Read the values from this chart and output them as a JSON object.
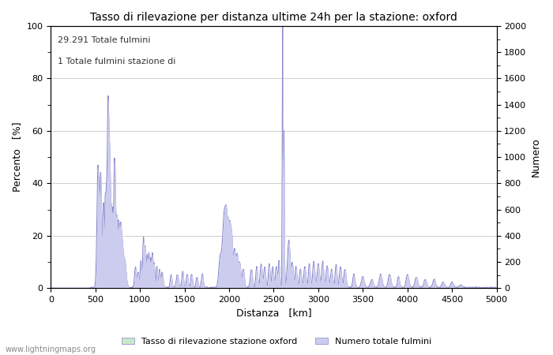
{
  "title": "Tasso di rilevazione per distanza ultime 24h per la stazione: oxford",
  "xlabel": "Distanza   [km]",
  "ylabel_left": "Percento   [%]",
  "ylabel_right": "Numero",
  "annotation_line1": "29.291 Totale fulmini",
  "annotation_line2": "1 Totale fulmini stazione di",
  "xlim": [
    0,
    5000
  ],
  "ylim_left": [
    0,
    100
  ],
  "ylim_right": [
    0,
    2000
  ],
  "xticks": [
    0,
    500,
    1000,
    1500,
    2000,
    2500,
    3000,
    3500,
    4000,
    4500,
    5000
  ],
  "yticks_left": [
    0,
    20,
    40,
    60,
    80,
    100
  ],
  "yticks_right": [
    0,
    200,
    400,
    600,
    800,
    1000,
    1200,
    1400,
    1600,
    1800,
    2000
  ],
  "legend_label_green": "Tasso di rilevazione stazione oxford",
  "legend_label_blue": "Numero totale fulmini",
  "line_color": "#8888cc",
  "fill_green_color": "#c8e8c8",
  "fill_blue_color": "#ccccee",
  "background_color": "#ffffff",
  "grid_color": "#bbbbbb",
  "watermark": "www.lightningmaps.org",
  "title_fontsize": 10,
  "axis_fontsize": 9,
  "tick_fontsize": 8
}
